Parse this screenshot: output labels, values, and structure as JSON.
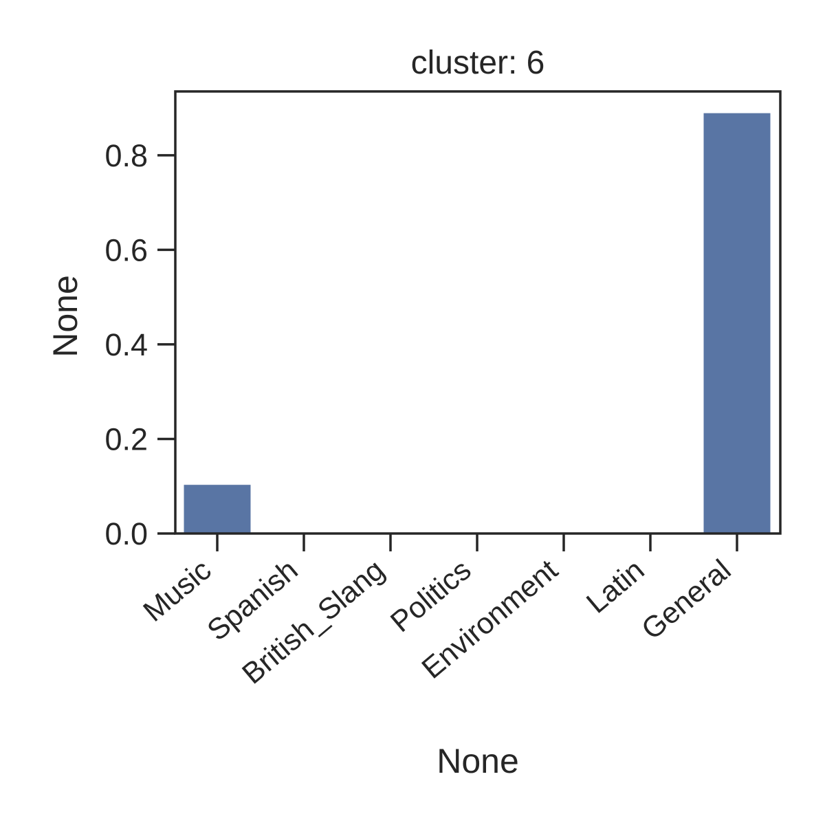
{
  "chart_data": {
    "type": "bar",
    "title": "cluster: 6",
    "xlabel": "None",
    "ylabel": "None",
    "categories": [
      "Music",
      "Spanish",
      "British_Slang",
      "Politics",
      "Environment",
      "Latin",
      "General"
    ],
    "values": [
      0.103,
      0,
      0,
      0,
      0,
      0,
      0.889
    ],
    "ylim": [
      0,
      0.935
    ],
    "yticks": [
      0.0,
      0.2,
      0.4,
      0.6,
      0.8
    ],
    "ytick_labels": [
      "0.0",
      "0.2",
      "0.4",
      "0.6",
      "0.8"
    ],
    "grid": false,
    "legend": "none",
    "bar_color": "#5975a4",
    "axis_color": "#262626"
  }
}
